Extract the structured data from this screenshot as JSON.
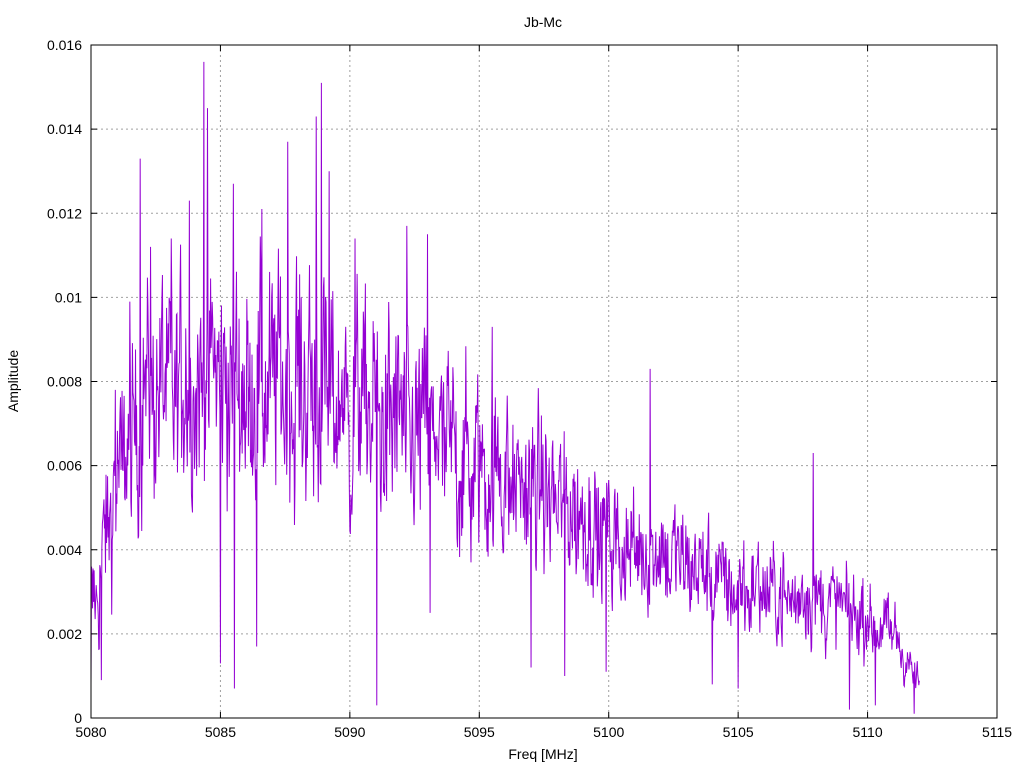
{
  "chart_data": {
    "type": "line",
    "title": "Jb-Mc",
    "xlabel": "Freq [MHz]",
    "ylabel": "Amplitude",
    "xlim": [
      5080,
      5115
    ],
    "ylim": [
      0,
      0.016
    ],
    "x_ticks": [
      "5080",
      "5085",
      "5090",
      "5095",
      "5100",
      "5105",
      "5110",
      "5115"
    ],
    "y_ticks": [
      "0",
      "0.002",
      "0.004",
      "0.006",
      "0.008",
      "0.01",
      "0.012",
      "0.014",
      "0.016"
    ],
    "grid": true,
    "series_color": "#9400d3",
    "x_start": 5080.0,
    "x_end": 5112.0,
    "envelope": {
      "x": [
        5080,
        5081,
        5082,
        5083,
        5084,
        5085,
        5086,
        5087,
        5088,
        5089,
        5090,
        5091,
        5092,
        5093,
        5094,
        5095,
        5096,
        5097,
        5098,
        5099,
        5100,
        5101,
        5102,
        5103,
        5104,
        5105,
        5106,
        5107,
        5108,
        5109,
        5110,
        5111,
        5112
      ],
      "mean": [
        0.0025,
        0.0055,
        0.0075,
        0.0078,
        0.0082,
        0.008,
        0.0078,
        0.008,
        0.0079,
        0.0076,
        0.0073,
        0.0072,
        0.007,
        0.0068,
        0.0063,
        0.006,
        0.0057,
        0.0054,
        0.005,
        0.0047,
        0.0043,
        0.0041,
        0.0039,
        0.0037,
        0.0033,
        0.0031,
        0.003,
        0.0029,
        0.0028,
        0.0026,
        0.0024,
        0.002,
        0.0008
      ],
      "spread": [
        0.0018,
        0.0028,
        0.0034,
        0.0035,
        0.0038,
        0.0038,
        0.0037,
        0.0038,
        0.0038,
        0.0037,
        0.0035,
        0.0034,
        0.0033,
        0.0032,
        0.003,
        0.0029,
        0.0027,
        0.0026,
        0.0024,
        0.0023,
        0.0021,
        0.002,
        0.0019,
        0.0018,
        0.0016,
        0.0016,
        0.0015,
        0.0015,
        0.0014,
        0.0014,
        0.0013,
        0.0011,
        0.0005
      ]
    },
    "peaks": [
      {
        "x": 5080.95,
        "y": 0.0078
      },
      {
        "x": 5081.5,
        "y": 0.0099
      },
      {
        "x": 5081.9,
        "y": 0.0133
      },
      {
        "x": 5082.3,
        "y": 0.0112
      },
      {
        "x": 5083.1,
        "y": 0.0114
      },
      {
        "x": 5083.8,
        "y": 0.0123
      },
      {
        "x": 5084.35,
        "y": 0.0156
      },
      {
        "x": 5084.5,
        "y": 0.0145
      },
      {
        "x": 5085.5,
        "y": 0.0127
      },
      {
        "x": 5086.6,
        "y": 0.0121
      },
      {
        "x": 5087.6,
        "y": 0.0137
      },
      {
        "x": 5088.7,
        "y": 0.0143
      },
      {
        "x": 5088.9,
        "y": 0.0151
      },
      {
        "x": 5089.2,
        "y": 0.013
      },
      {
        "x": 5090.2,
        "y": 0.0114
      },
      {
        "x": 5092.2,
        "y": 0.0117
      },
      {
        "x": 5093.0,
        "y": 0.0115
      },
      {
        "x": 5095.5,
        "y": 0.0093
      },
      {
        "x": 5097.0,
        "y": 0.0099
      },
      {
        "x": 5101.6,
        "y": 0.0083
      },
      {
        "x": 5107.9,
        "y": 0.0063
      }
    ],
    "dips": [
      {
        "x": 5080.0,
        "y": 0.0008
      },
      {
        "x": 5080.4,
        "y": 0.0009
      },
      {
        "x": 5085.0,
        "y": 0.0013
      },
      {
        "x": 5085.55,
        "y": 0.0007
      },
      {
        "x": 5086.4,
        "y": 0.0017
      },
      {
        "x": 5091.05,
        "y": 0.0003
      },
      {
        "x": 5093.1,
        "y": 0.0025
      },
      {
        "x": 5097.0,
        "y": 0.0012
      },
      {
        "x": 5098.3,
        "y": 0.001
      },
      {
        "x": 5099.9,
        "y": 0.0011
      },
      {
        "x": 5104.0,
        "y": 0.0008
      },
      {
        "x": 5105.0,
        "y": 0.0007
      },
      {
        "x": 5109.3,
        "y": 0.0002
      },
      {
        "x": 5110.3,
        "y": 0.0003
      },
      {
        "x": 5111.8,
        "y": 0.0001
      }
    ]
  }
}
